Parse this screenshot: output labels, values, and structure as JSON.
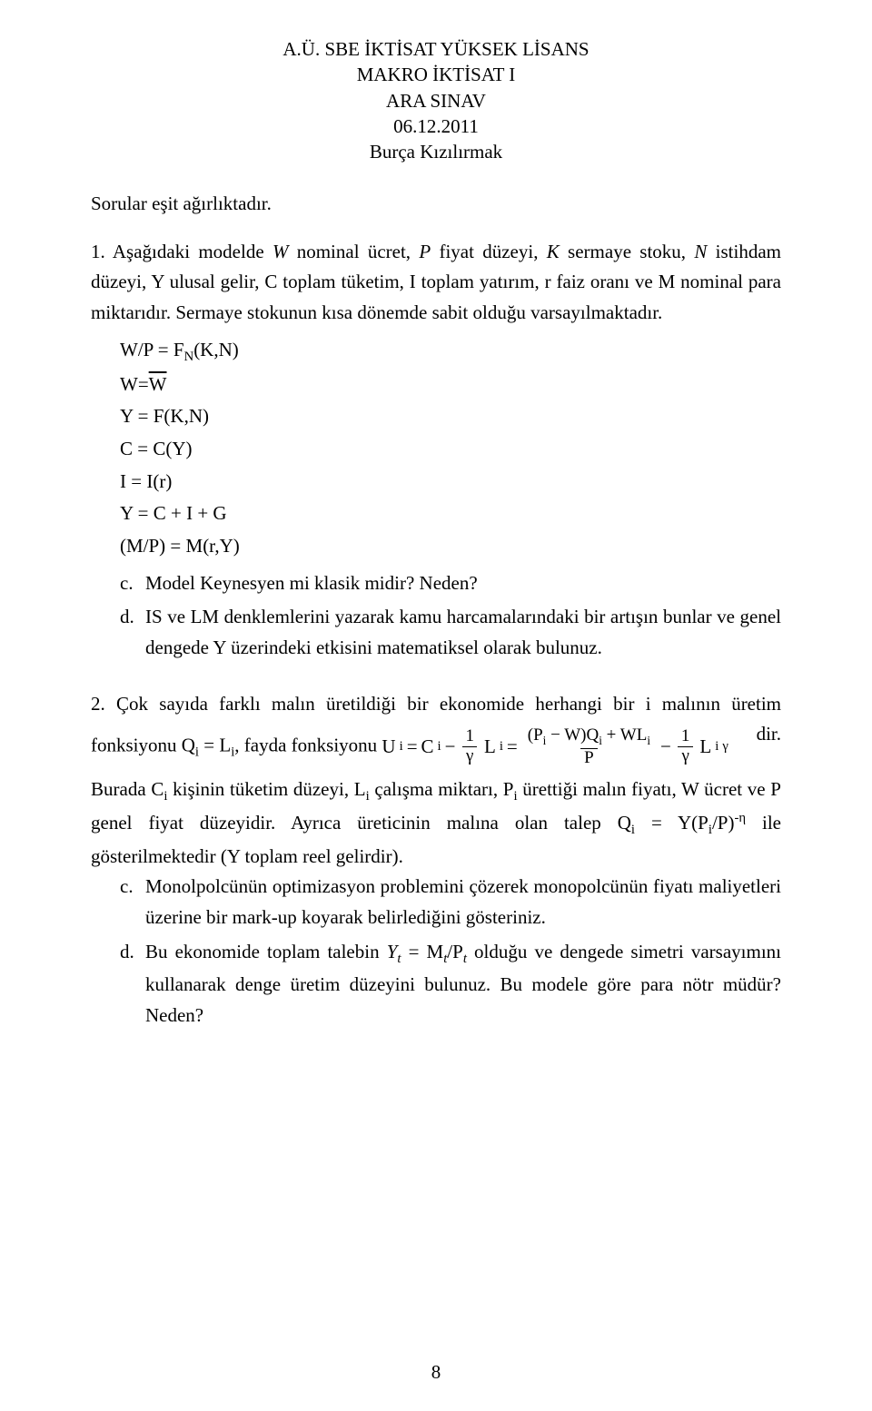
{
  "colors": {
    "text": "#000000",
    "background": "#ffffff"
  },
  "header": {
    "line1": "A.Ü. SBE İKTİSAT YÜKSEK LİSANS",
    "line2": "MAKRO İKTİSAT I",
    "line3": "ARA SINAV",
    "line4": "06.12.2011",
    "line5": "Burça Kızılırmak"
  },
  "intro": "Sorular eşit ağırlıktadır.",
  "q1": {
    "num": "1.",
    "body_a": "Aşağıdaki modelde ",
    "body_b": " nominal ücret, ",
    "body_c": " fiyat düzeyi, ",
    "body_d": " sermaye stoku, ",
    "body_e": " istihdam düzeyi, Y ulusal gelir, C toplam tüketim, I toplam yatırım, r faiz oranı ve M nominal para miktarıdır. Sermaye stokunun kısa dönemde sabit olduğu varsayılmaktadır.",
    "eq1": "W/P = F",
    "eq1_sub": "N",
    "eq1_rest": "(K,N)",
    "eq2_pre": "W=",
    "eq2_bar": "W",
    "eq3": "Y = F(K,N)",
    "eq4": "C = C(Y)",
    "eq5": "I = I(r)",
    "eq6": "Y = C + I + G",
    "eq7": "(M/P) = M(r,Y)",
    "c_label": "c.",
    "c_text": "Model Keynesyen mi klasik midir? Neden?",
    "d_label": "d.",
    "d_text": "IS ve LM denklemlerini yazarak kamu harcamalarındaki bir artışın bunlar ve genel dengede Y üzerindeki etkisini matematiksel olarak bulunuz."
  },
  "q2": {
    "num": "2.",
    "body_a": "Çok sayıda farklı malın üretildiği bir ekonomide herhangi bir i malının üretim fonksiyonu Q",
    "body_b": " = L",
    "body_c": ", fayda fonksiyonu ",
    "u_lhs": "U",
    "eq_eq": " = ",
    "c_sym": "C",
    "minus": " − ",
    "frac1_num": "1",
    "frac1_den": "γ",
    "L_sym": "L",
    "frac2_num_a": "(P",
    "frac2_num_b": " − W)Q",
    "frac2_num_c": " + WL",
    "frac2_den": "P",
    "L_gamma": "γ",
    "dir": " dir.",
    "body_d": "Burada C",
    "body_e": " kişinin tüketim düzeyi, L",
    "body_f": " çalışma miktarı, P",
    "body_g": " ürettiği malın fiyatı, W ücret ve P genel fiyat düzeyidir. Ayrıca üreticinin malına olan talep Q",
    "body_h": " = Y(P",
    "body_i": "/P)",
    "exp_neg_eta": "-η",
    "body_j": " ile gösterilmektedir (Y toplam reel gelirdir).",
    "c_label": "c.",
    "c_text": "Monolpolcünün optimizasyon problemini çözerek monopolcünün fiyatı maliyetleri üzerine bir mark-up koyarak belirlediğini gösteriniz.",
    "d_label": "d.",
    "d_text_a": "Bu ekonomide toplam talebin ",
    "d_eq": "Y",
    "d_eq_t": "t",
    "d_eq_mid": " = M",
    "d_eq_t2": "t",
    "d_eq_slash": "/P",
    "d_eq_t3": "t",
    "d_text_b": " olduğu ve dengede simetri varsayımını kullanarak denge üretim düzeyini bulunuz. Bu modele göre para nötr müdür? Neden?"
  },
  "page_number": "8",
  "italic_vars": {
    "W": "W",
    "P": "P",
    "K": "K",
    "N": "N",
    "i": "i"
  }
}
